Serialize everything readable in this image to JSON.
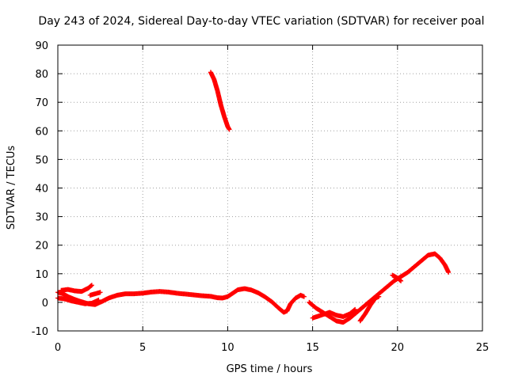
{
  "chart_data": {
    "type": "scatter",
    "title": "Day 243 of 2024, Sidereal Day-to-day VTEC variation (SDTVAR) for receiver poal",
    "xlabel": "GPS time / hours",
    "ylabel": "SDTVAR / TECUs",
    "xlim": [
      0,
      25
    ],
    "ylim": [
      -10,
      90
    ],
    "xticks": [
      0,
      5,
      10,
      15,
      20,
      25
    ],
    "yticks": [
      -10,
      0,
      10,
      20,
      30,
      40,
      50,
      60,
      70,
      80,
      90
    ],
    "grid": true,
    "marker": "plus",
    "series": [
      {
        "name": "SDTVAR",
        "color": "#ff0000",
        "segments": [
          [
            [
              0.0,
              3.5
            ],
            [
              0.3,
              3.0
            ],
            [
              0.6,
              2.0
            ],
            [
              1.0,
              1.0
            ],
            [
              1.4,
              0.2
            ],
            [
              1.8,
              -0.5
            ],
            [
              2.2,
              -0.8
            ],
            [
              2.6,
              0.3
            ],
            [
              3.0,
              1.5
            ],
            [
              3.5,
              2.5
            ],
            [
              4.0,
              3.0
            ],
            [
              4.5,
              3.0
            ],
            [
              5.0,
              3.2
            ],
            [
              5.5,
              3.6
            ],
            [
              6.0,
              3.8
            ],
            [
              6.5,
              3.6
            ],
            [
              7.0,
              3.2
            ],
            [
              7.5,
              2.9
            ],
            [
              8.0,
              2.6
            ],
            [
              8.5,
              2.3
            ],
            [
              9.0,
              2.1
            ],
            [
              9.4,
              1.6
            ],
            [
              9.7,
              1.5
            ],
            [
              10.0,
              2.0
            ],
            [
              10.3,
              3.2
            ],
            [
              10.6,
              4.4
            ],
            [
              11.0,
              4.8
            ],
            [
              11.4,
              4.3
            ],
            [
              11.8,
              3.3
            ],
            [
              12.2,
              1.9
            ],
            [
              12.6,
              0.2
            ],
            [
              13.0,
              -2.0
            ],
            [
              13.3,
              -3.5
            ],
            [
              13.5,
              -3.0
            ],
            [
              13.7,
              -0.5
            ],
            [
              14.0,
              1.5
            ],
            [
              14.3,
              2.5
            ],
            [
              14.5,
              2.0
            ]
          ],
          [
            [
              0.0,
              1.5
            ],
            [
              0.4,
              1.2
            ],
            [
              0.8,
              0.5
            ],
            [
              1.2,
              0.0
            ],
            [
              1.6,
              -0.5
            ],
            [
              2.0,
              -0.3
            ],
            [
              2.4,
              0.8
            ]
          ],
          [
            [
              0.2,
              4.2
            ],
            [
              0.6,
              4.5
            ],
            [
              1.0,
              4.0
            ],
            [
              1.4,
              3.8
            ],
            [
              1.8,
              5.0
            ],
            [
              2.0,
              6.0
            ]
          ],
          [
            [
              1.9,
              2.5
            ],
            [
              2.2,
              3.0
            ],
            [
              2.5,
              3.5
            ]
          ],
          [
            [
              14.8,
              0.0
            ],
            [
              15.2,
              -2.0
            ],
            [
              15.6,
              -3.5
            ],
            [
              16.0,
              -5.0
            ],
            [
              16.4,
              -6.5
            ],
            [
              16.8,
              -7.0
            ],
            [
              17.2,
              -5.5
            ],
            [
              17.6,
              -3.5
            ],
            [
              18.0,
              -1.5
            ],
            [
              18.5,
              1.0
            ],
            [
              19.0,
              3.5
            ],
            [
              19.4,
              5.5
            ],
            [
              19.8,
              7.5
            ],
            [
              20.2,
              9.0
            ],
            [
              20.6,
              10.5
            ],
            [
              21.0,
              12.5
            ],
            [
              21.4,
              14.5
            ],
            [
              21.8,
              16.5
            ],
            [
              22.2,
              17.0
            ],
            [
              22.5,
              15.5
            ],
            [
              22.8,
              13.0
            ],
            [
              23.0,
              10.5
            ]
          ],
          [
            [
              15.0,
              -5.5
            ],
            [
              15.5,
              -4.5
            ],
            [
              16.0,
              -3.5
            ],
            [
              16.4,
              -4.5
            ],
            [
              16.8,
              -5.0
            ],
            [
              17.2,
              -4.0
            ],
            [
              17.5,
              -2.5
            ]
          ],
          [
            [
              17.8,
              -6.5
            ],
            [
              18.1,
              -4.0
            ],
            [
              18.4,
              -1.0
            ],
            [
              18.7,
              1.5
            ],
            [
              18.9,
              2.0
            ]
          ],
          [
            [
              19.7,
              9.5
            ],
            [
              20.0,
              8.5
            ],
            [
              20.2,
              7.5
            ]
          ],
          [
            [
              9.0,
              80.5
            ],
            [
              9.2,
              78.0
            ],
            [
              9.4,
              74.0
            ],
            [
              9.6,
              69.0
            ],
            [
              9.8,
              65.0
            ],
            [
              10.0,
              61.5
            ],
            [
              10.1,
              60.5
            ]
          ]
        ]
      }
    ]
  }
}
